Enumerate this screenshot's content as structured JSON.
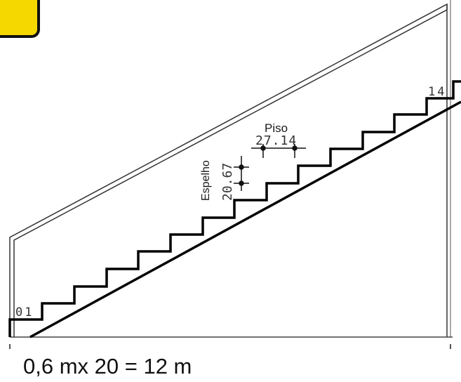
{
  "diagram": {
    "labels": {
      "first_step": "01",
      "last_step": "14",
      "tread_title": "Piso",
      "tread_value": "27.14",
      "riser_title": "Espelho",
      "riser_value": "20.67"
    },
    "caption": "0,6 mx 20 = 12 m",
    "badge_color": "#f5d800"
  }
}
